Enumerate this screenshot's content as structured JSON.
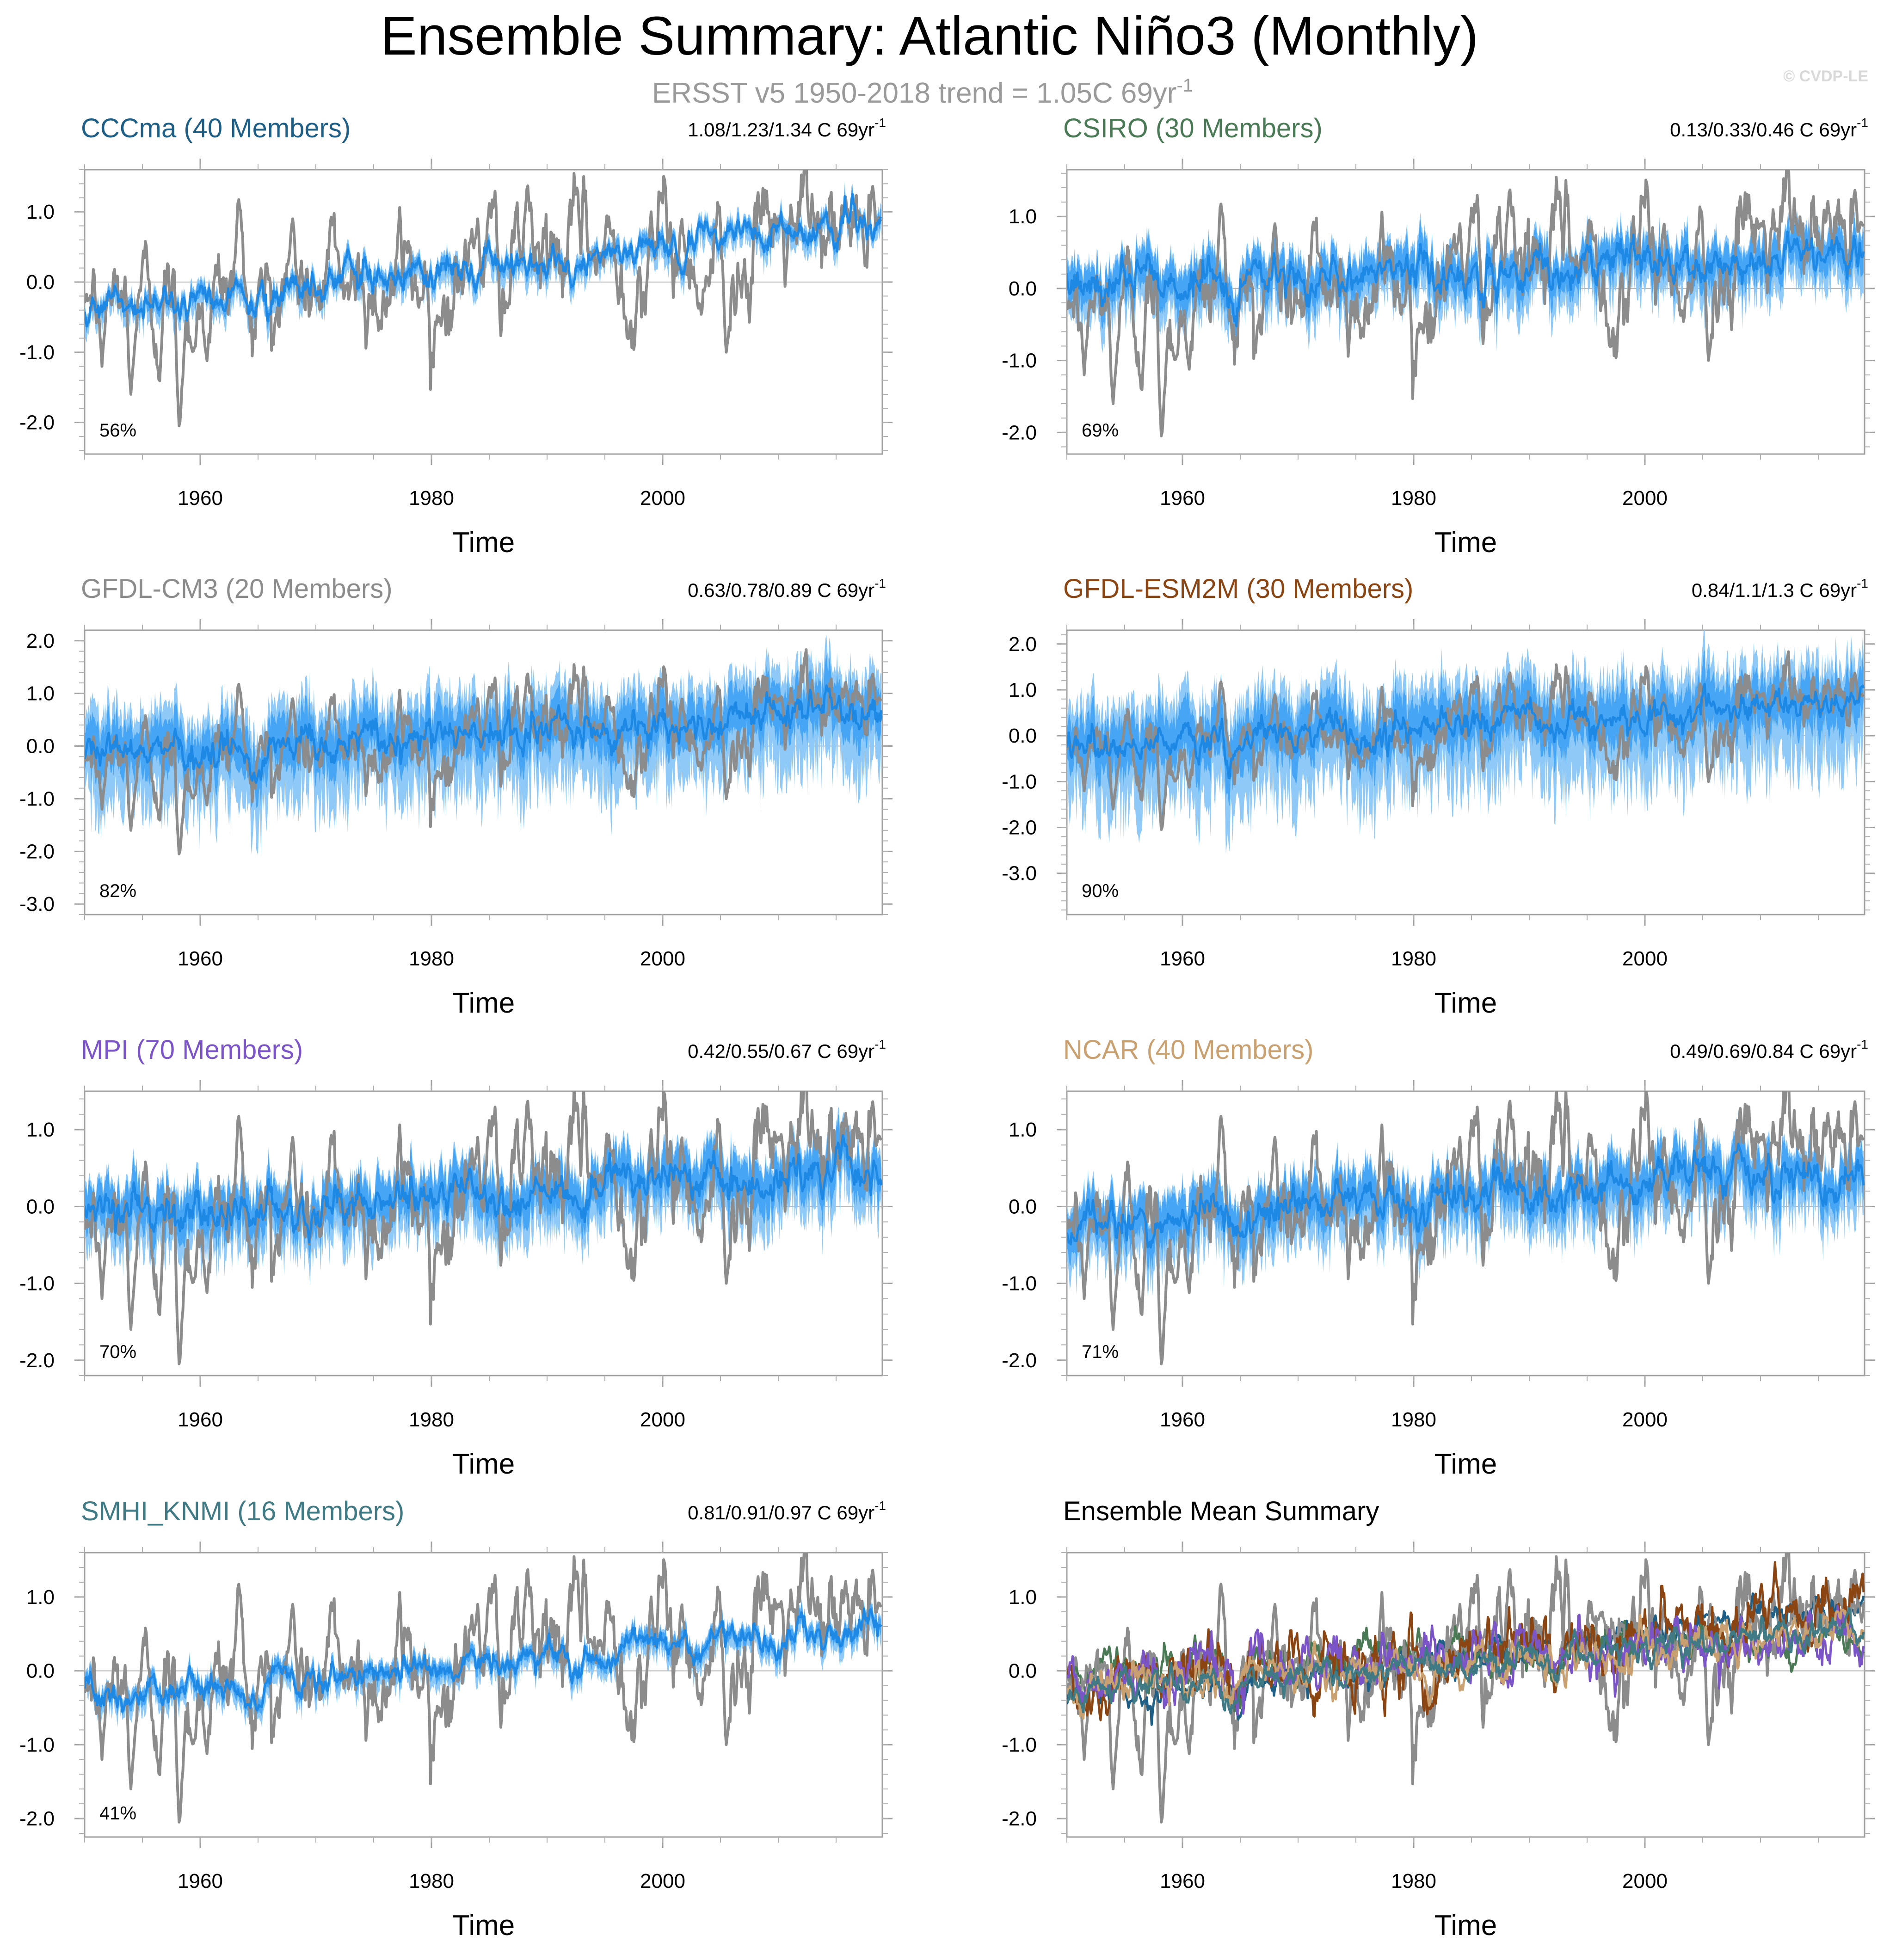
{
  "title": "Ensemble Summary: Atlantic Niño3 (Monthly)",
  "subtitle": "ERSST v5 1950-2018 trend = 1.05C 69yr",
  "subtitle_sup": "-1",
  "watermark": "© CVDP-LE",
  "colors": {
    "obs": "#8c8c8c",
    "ens_light": "#8ec9f7",
    "ens_mid": "#3aa0f5",
    "ens_mean": "#1e88e5",
    "zero_line": "#b5b5b5"
  },
  "chart_data": [
    {
      "type": "line",
      "id": "cccma",
      "title": "CCCma (40 Members)",
      "title_color": "#1f5f86",
      "trend": "1.08/1.23/1.34 C 69yr",
      "trend_sup": "-1",
      "pct": "56%",
      "ylim": [
        -2.45,
        1.6
      ],
      "yticks": [
        -2.0,
        -1.0,
        0.0,
        1.0
      ],
      "ytick_labels": [
        "-2.0",
        "-1.0",
        "0.0",
        "1.0"
      ],
      "xlim": [
        1950,
        2019
      ],
      "xticks": [
        1960,
        1980,
        2000
      ],
      "xtick_labels": [
        "1960",
        "1980",
        "2000"
      ],
      "xlabel": "Time",
      "series_obs": "ERSST v5",
      "ens_mean": {
        "start": -0.35,
        "end": 0.88,
        "noise": 0.08,
        "cool1965": -0.28,
        "cool1992": -0.2
      },
      "spread": {
        "inner": 0.1,
        "outer": 0.22
      }
    },
    {
      "type": "line",
      "id": "csiro",
      "title": "CSIRO (30 Members)",
      "title_color": "#4a7a55",
      "trend": "0.13/0.33/0.46 C 69yr",
      "trend_sup": "-1",
      "pct": "69%",
      "ylim": [
        -2.3,
        1.65
      ],
      "yticks": [
        -2.0,
        -1.0,
        0.0,
        1.0
      ],
      "ytick_labels": [
        "-2.0",
        "-1.0",
        "0.0",
        "1.0"
      ],
      "xlim": [
        1950,
        2019
      ],
      "xticks": [
        1960,
        1980,
        2000
      ],
      "xtick_labels": [
        "1960",
        "1980",
        "2000"
      ],
      "xlabel": "Time",
      "series_obs": "ERSST v5",
      "ens_mean": {
        "start": 0.05,
        "end": 0.45,
        "noise": 0.1,
        "cool1965": -0.4,
        "cool1992": -0.3
      },
      "spread": {
        "inner": 0.25,
        "outer": 0.45
      }
    },
    {
      "type": "line",
      "id": "gfdl-cm3",
      "title": "GFDL-CM3 (20 Members)",
      "title_color": "#8c8c8c",
      "trend": "0.63/0.78/0.89 C 69yr",
      "trend_sup": "-1",
      "pct": "82%",
      "ylim": [
        -3.2,
        2.2
      ],
      "yticks": [
        -3.0,
        -2.0,
        -1.0,
        0.0,
        1.0,
        2.0
      ],
      "ytick_labels": [
        "-3.0",
        "-2.0",
        "-1.0",
        "0.0",
        "1.0",
        "2.0"
      ],
      "xlim": [
        1950,
        2019
      ],
      "xticks": [
        1960,
        1980,
        2000
      ],
      "xtick_labels": [
        "1960",
        "1980",
        "2000"
      ],
      "xlabel": "Time",
      "series_obs": "ERSST v5",
      "ens_mean": {
        "start": -0.1,
        "end": 0.7,
        "noise": 0.12,
        "cool1965": -0.5,
        "cool1992": -0.4
      },
      "spread": {
        "inner": 0.45,
        "outer": 1.05
      }
    },
    {
      "type": "line",
      "id": "gfdl-esm2m",
      "title": "GFDL-ESM2M (30 Members)",
      "title_color": "#8b4513",
      "trend": "0.84/1.1/1.3 C 69yr",
      "trend_sup": "-1",
      "pct": "90%",
      "ylim": [
        -3.9,
        2.3
      ],
      "yticks": [
        -3.0,
        -2.0,
        -1.0,
        0.0,
        1.0,
        2.0
      ],
      "ytick_labels": [
        "-3.0",
        "-2.0",
        "-1.0",
        "0.0",
        "1.0",
        "2.0"
      ],
      "xlim": [
        1950,
        2019
      ],
      "xticks": [
        1960,
        1980,
        2000
      ],
      "xtick_labels": [
        "1960",
        "1980",
        "2000"
      ],
      "xlabel": "Time",
      "series_obs": "ERSST v5",
      "ens_mean": {
        "start": -0.25,
        "end": 0.85,
        "noise": 0.12,
        "cool1965": -0.45,
        "cool1992": -0.3
      },
      "spread": {
        "inner": 0.55,
        "outer": 1.3
      }
    },
    {
      "type": "line",
      "id": "mpi",
      "title": "MPI (70 Members)",
      "title_color": "#7b55c8",
      "trend": "0.42/0.55/0.67 C 69yr",
      "trend_sup": "-1",
      "pct": "70%",
      "ylim": [
        -2.2,
        1.5
      ],
      "yticks": [
        -2.0,
        -1.0,
        0.0,
        1.0
      ],
      "ytick_labels": [
        "-2.0",
        "-1.0",
        "0.0",
        "1.0"
      ],
      "xlim": [
        1950,
        2019
      ],
      "xticks": [
        1960,
        1980,
        2000
      ],
      "xtick_labels": [
        "1960",
        "1980",
        "2000"
      ],
      "xlabel": "Time",
      "series_obs": "ERSST v5",
      "ens_mean": {
        "start": -0.1,
        "end": 0.45,
        "noise": 0.09,
        "cool1965": -0.35,
        "cool1992": -0.3
      },
      "spread": {
        "inner": 0.28,
        "outer": 0.5
      }
    },
    {
      "type": "line",
      "id": "ncar",
      "title": "NCAR (40 Members)",
      "title_color": "#c9a070",
      "trend": "0.49/0.69/0.84 C 69yr",
      "trend_sup": "-1",
      "pct": "71%",
      "ylim": [
        -2.2,
        1.5
      ],
      "yticks": [
        -2.0,
        -1.0,
        0.0,
        1.0
      ],
      "ytick_labels": [
        "-2.0",
        "-1.0",
        "0.0",
        "1.0"
      ],
      "xlim": [
        1950,
        2019
      ],
      "xticks": [
        1960,
        1980,
        2000
      ],
      "xtick_labels": [
        "1960",
        "1980",
        "2000"
      ],
      "xlabel": "Time",
      "series_obs": "ERSST v5",
      "ens_mean": {
        "start": -0.2,
        "end": 0.55,
        "noise": 0.09,
        "cool1965": -0.35,
        "cool1992": -0.35
      },
      "spread": {
        "inner": 0.28,
        "outer": 0.5
      }
    },
    {
      "type": "line",
      "id": "smhi-knmi",
      "title": "SMHI_KNMI (16 Members)",
      "title_color": "#3f7a85",
      "trend": "0.81/0.91/0.97 C 69yr",
      "trend_sup": "-1",
      "pct": "41%",
      "ylim": [
        -2.25,
        1.6
      ],
      "yticks": [
        -2.0,
        -1.0,
        0.0,
        1.0
      ],
      "ytick_labels": [
        "-2.0",
        "-1.0",
        "0.0",
        "1.0"
      ],
      "xlim": [
        1950,
        2019
      ],
      "xticks": [
        1960,
        1980,
        2000
      ],
      "xtick_labels": [
        "1960",
        "1980",
        "2000"
      ],
      "xlabel": "Time",
      "series_obs": "ERSST v5",
      "ens_mean": {
        "start": -0.3,
        "end": 0.62,
        "noise": 0.07,
        "cool1965": -0.25,
        "cool1992": -0.25
      },
      "spread": {
        "inner": 0.1,
        "outer": 0.2
      }
    },
    {
      "type": "line",
      "id": "summary",
      "title": "Ensemble Mean Summary",
      "title_color": "#000000",
      "trend": "",
      "trend_sup": "",
      "pct": "",
      "ylim": [
        -2.25,
        1.6
      ],
      "yticks": [
        -2.0,
        -1.0,
        0.0,
        1.0
      ],
      "ytick_labels": [
        "-2.0",
        "-1.0",
        "0.0",
        "1.0"
      ],
      "xlim": [
        1950,
        2019
      ],
      "xticks": [
        1960,
        1980,
        2000
      ],
      "xtick_labels": [
        "1960",
        "1980",
        "2000"
      ],
      "xlabel": "Time",
      "series_obs": "ERSST v5",
      "summary_series": [
        {
          "name": "CCCma",
          "color": "#1f5f86",
          "start": -0.35,
          "end": 0.88,
          "noise": 0.07
        },
        {
          "name": "CSIRO",
          "color": "#4a7a55",
          "start": 0.05,
          "end": 0.45,
          "noise": 0.09
        },
        {
          "name": "GFDL-CM3",
          "color": "#8c8c8c",
          "start": -0.1,
          "end": 0.7,
          "noise": 0.1
        },
        {
          "name": "GFDL-ESM2M",
          "color": "#8b4513",
          "start": -0.25,
          "end": 0.85,
          "noise": 0.14
        },
        {
          "name": "MPI",
          "color": "#7b55c8",
          "start": -0.1,
          "end": 0.45,
          "noise": 0.12
        },
        {
          "name": "NCAR",
          "color": "#c9a070",
          "start": -0.2,
          "end": 0.55,
          "noise": 0.09
        },
        {
          "name": "SMHI_KNMI",
          "color": "#3f7a85",
          "start": -0.3,
          "end": 0.62,
          "noise": 0.07
        }
      ]
    }
  ],
  "obs_anchor_values": [
    {
      "year": 1950.0,
      "value": -0.3
    },
    {
      "year": 1951.5,
      "value": -1.2
    },
    {
      "year": 1954.0,
      "value": -1.6
    },
    {
      "year": 1958.2,
      "value": -2.15
    },
    {
      "year": 1963.3,
      "value": 1.25
    },
    {
      "year": 1968.0,
      "value": 0.9
    },
    {
      "year": 1984.0,
      "value": 0.9
    },
    {
      "year": 1988.3,
      "value": 1.45
    },
    {
      "year": 1999.0,
      "value": 1.0
    },
    {
      "year": 2005.5,
      "value": -1.0
    },
    {
      "year": 2010.0,
      "value": 0.9
    },
    {
      "year": 2018.8,
      "value": 0.85
    }
  ]
}
